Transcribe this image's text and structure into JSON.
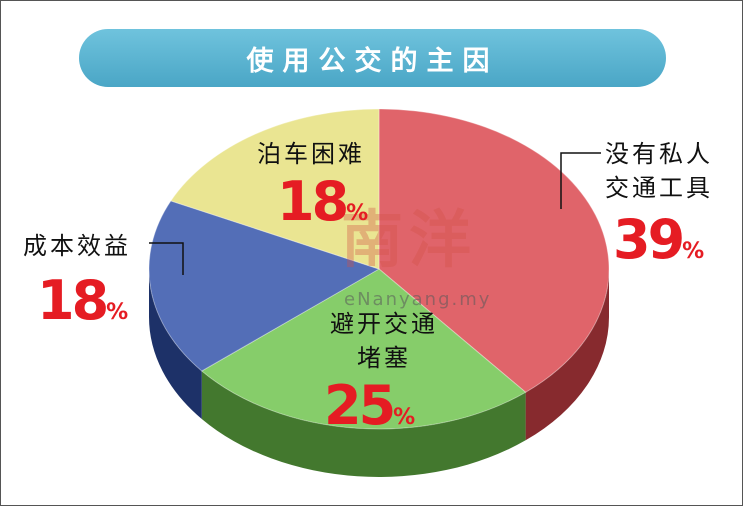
{
  "title": "使用公交的主因",
  "watermark": {
    "name": "南洋",
    "url": "eNanyang.my"
  },
  "chart_data": {
    "type": "pie",
    "title": "使用公交的主因",
    "slices": [
      {
        "label": "没有私人交通工具",
        "value": 39,
        "value_label": "39",
        "color": "#d9434a"
      },
      {
        "label": "避开交通堵塞",
        "value": 25,
        "value_label": "25",
        "color": "#6cc24a"
      },
      {
        "label": "成本效益",
        "value": 18,
        "value_label": "18",
        "color": "#2e4fa8"
      },
      {
        "label": "泊车困难",
        "value": 18,
        "value_label": "18",
        "color": "#e6e07a"
      }
    ],
    "unit": "%"
  }
}
